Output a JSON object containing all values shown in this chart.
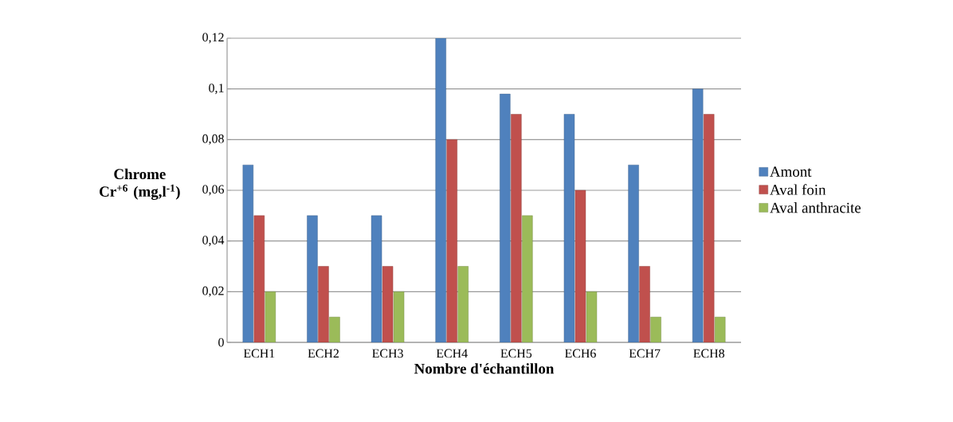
{
  "chart_data": {
    "type": "bar",
    "xlabel": "Nombre d'échantillon",
    "ylabel": "**Chrome Cr$^{+6}$ (mg,l$^{-1}$)**",
    "categories": [
      "ECH1",
      "ECH2",
      "ECH3",
      "ECH4",
      "ECH5",
      "ECH6",
      "ECH7",
      "ECH8"
    ],
    "series": [
      {
        "name": "Amont",
        "color": "#4f81bd",
        "values": [
          0.07,
          0.05,
          0.05,
          0.12,
          0.098,
          0.09,
          0.07,
          0.1
        ]
      },
      {
        "name": "Aval foin",
        "color": "#c0504d",
        "values": [
          0.05,
          0.03,
          0.03,
          0.08,
          0.09,
          0.06,
          0.03,
          0.09
        ]
      },
      {
        "name": "Aval anthracite",
        "color": "#9bbb59",
        "values": [
          0.02,
          0.01,
          0.02,
          0.03,
          0.05,
          0.02,
          0.01,
          0.01
        ]
      }
    ],
    "ylim": [
      0,
      0.12
    ],
    "yticks": [
      0,
      {
        "value": 0.02,
        "label": "0,02"
      },
      {
        "value": 0.04,
        "label": "0,04"
      },
      {
        "value": 0.06,
        "label": "0,06"
      },
      {
        "value": 0.08,
        "label": "0,08"
      },
      {
        "value": 0.1,
        "label": "0,1"
      },
      {
        "value": 0.12,
        "label": "0,12"
      }
    ],
    "grid": "y",
    "legend": "right"
  }
}
